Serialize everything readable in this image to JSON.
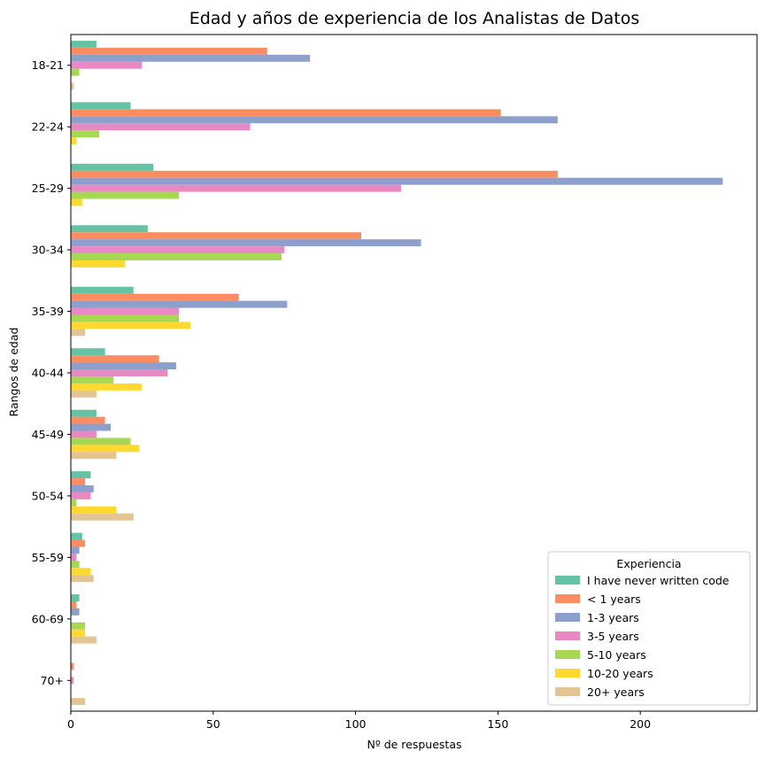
{
  "chart_data": {
    "type": "bar",
    "orientation": "horizontal",
    "title": "Edad y años de experiencia de los Analistas de Datos",
    "xlabel": "Nº de respuestas",
    "ylabel": "Rangos de edad",
    "xlim": [
      0,
      241
    ],
    "xticks": [
      0,
      50,
      100,
      150,
      200
    ],
    "grid": false,
    "legend": {
      "title": "Experiencia",
      "placement": "lower-right"
    },
    "categories": [
      "18-21",
      "22-24",
      "25-29",
      "30-34",
      "35-39",
      "40-44",
      "45-49",
      "50-54",
      "55-59",
      "60-69",
      "70+"
    ],
    "series": [
      {
        "name": "I have never written code",
        "color": "#66c2a5",
        "values": [
          9,
          21,
          29,
          27,
          22,
          12,
          9,
          7,
          4,
          3,
          0
        ]
      },
      {
        "name": "< 1 years",
        "color": "#fc8d62",
        "values": [
          69,
          151,
          171,
          102,
          59,
          31,
          12,
          5,
          5,
          2,
          1
        ]
      },
      {
        "name": "1-3 years",
        "color": "#8da0cb",
        "values": [
          84,
          171,
          229,
          123,
          76,
          37,
          14,
          8,
          3,
          3,
          0
        ]
      },
      {
        "name": "3-5 years",
        "color": "#e78ac3",
        "values": [
          25,
          63,
          116,
          75,
          38,
          34,
          9,
          7,
          2,
          0,
          1
        ]
      },
      {
        "name": "5-10 years",
        "color": "#a6d854",
        "values": [
          3,
          10,
          38,
          74,
          38,
          15,
          21,
          2,
          3,
          5,
          0
        ]
      },
      {
        "name": "10-20 years",
        "color": "#ffd92f",
        "values": [
          0,
          2,
          4,
          19,
          42,
          25,
          24,
          16,
          7,
          5,
          0
        ]
      },
      {
        "name": "20+ years",
        "color": "#e5c494",
        "values": [
          1,
          0,
          0,
          0,
          5,
          9,
          16,
          22,
          8,
          9,
          5
        ]
      }
    ]
  }
}
